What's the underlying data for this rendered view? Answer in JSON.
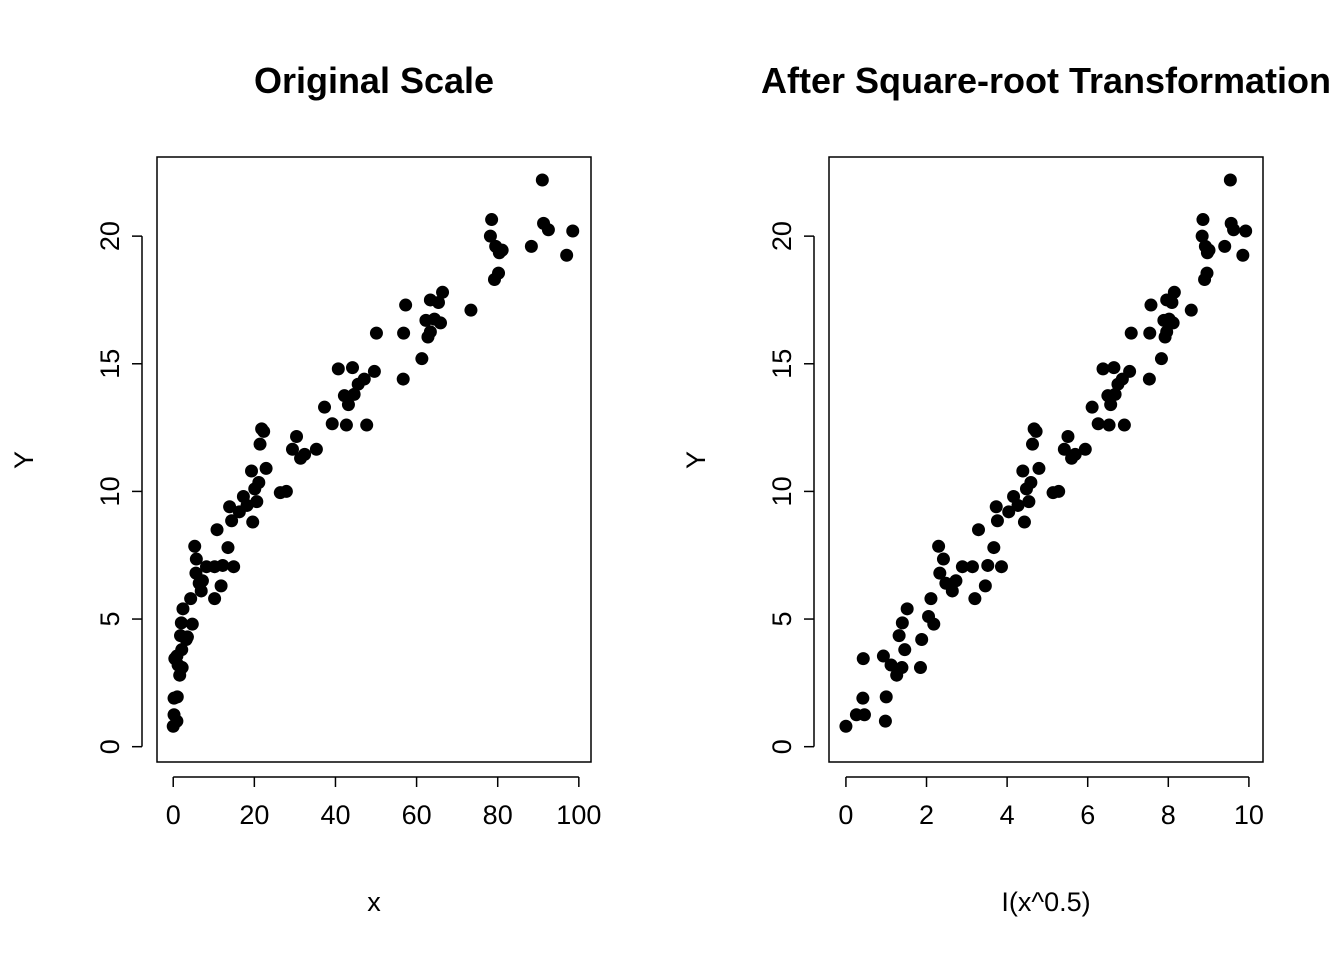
{
  "chart_data": [
    {
      "type": "scatter",
      "title": "Original Scale",
      "xlabel": "x",
      "ylabel": "Y",
      "xlim": [
        -4,
        103
      ],
      "ylim": [
        -0.6,
        23.1
      ],
      "x_ticks": [
        0,
        20,
        40,
        60,
        80,
        100
      ],
      "y_ticks": [
        0,
        5,
        10,
        15,
        20
      ],
      "grid": false,
      "legend": "none",
      "point_color": "#000000",
      "points": [
        {
          "x": 0.0,
          "y": 0.8
        },
        {
          "x": 0.2,
          "y": 1.25
        },
        {
          "x": 0.2,
          "y": 1.9
        },
        {
          "x": 0.4,
          "y": 3.45
        },
        {
          "x": 0.9,
          "y": 1.0
        },
        {
          "x": 1.0,
          "y": 1.95
        },
        {
          "x": 0.9,
          "y": 3.55
        },
        {
          "x": 1.2,
          "y": 3.2
        },
        {
          "x": 1.6,
          "y": 2.8
        },
        {
          "x": 2.2,
          "y": 3.1
        },
        {
          "x": 1.8,
          "y": 4.35
        },
        {
          "x": 2.0,
          "y": 4.85
        },
        {
          "x": 2.1,
          "y": 3.8
        },
        {
          "x": 2.4,
          "y": 5.4
        },
        {
          "x": 3.2,
          "y": 4.2
        },
        {
          "x": 3.5,
          "y": 4.3
        },
        {
          "x": 4.3,
          "y": 5.8
        },
        {
          "x": 4.7,
          "y": 4.8
        },
        {
          "x": 5.3,
          "y": 7.85
        },
        {
          "x": 5.6,
          "y": 6.8
        },
        {
          "x": 5.7,
          "y": 7.35
        },
        {
          "x": 6.4,
          "y": 6.4
        },
        {
          "x": 6.9,
          "y": 6.1
        },
        {
          "x": 7.2,
          "y": 6.5
        },
        {
          "x": 8.2,
          "y": 7.05
        },
        {
          "x": 10.2,
          "y": 5.8
        },
        {
          "x": 10.8,
          "y": 8.5
        },
        {
          "x": 10.2,
          "y": 7.05
        },
        {
          "x": 11.8,
          "y": 6.3
        },
        {
          "x": 12.2,
          "y": 7.1
        },
        {
          "x": 13.5,
          "y": 7.8
        },
        {
          "x": 13.9,
          "y": 9.4
        },
        {
          "x": 14.4,
          "y": 8.85
        },
        {
          "x": 14.9,
          "y": 7.05
        },
        {
          "x": 16.3,
          "y": 9.2
        },
        {
          "x": 17.3,
          "y": 9.8
        },
        {
          "x": 18.2,
          "y": 9.45
        },
        {
          "x": 19.3,
          "y": 10.8
        },
        {
          "x": 19.6,
          "y": 8.8
        },
        {
          "x": 20.1,
          "y": 10.1
        },
        {
          "x": 20.6,
          "y": 9.6
        },
        {
          "x": 21.1,
          "y": 10.35
        },
        {
          "x": 21.4,
          "y": 11.85
        },
        {
          "x": 21.8,
          "y": 12.45
        },
        {
          "x": 22.3,
          "y": 12.35
        },
        {
          "x": 22.9,
          "y": 10.9
        },
        {
          "x": 26.4,
          "y": 9.95
        },
        {
          "x": 27.9,
          "y": 10.0
        },
        {
          "x": 29.4,
          "y": 11.65
        },
        {
          "x": 30.4,
          "y": 12.15
        },
        {
          "x": 31.4,
          "y": 11.3
        },
        {
          "x": 32.4,
          "y": 11.45
        },
        {
          "x": 35.3,
          "y": 11.65
        },
        {
          "x": 37.3,
          "y": 13.3
        },
        {
          "x": 39.2,
          "y": 12.65
        },
        {
          "x": 40.7,
          "y": 14.8
        },
        {
          "x": 42.2,
          "y": 13.75
        },
        {
          "x": 42.7,
          "y": 12.6
        },
        {
          "x": 43.2,
          "y": 13.4
        },
        {
          "x": 44.2,
          "y": 14.85
        },
        {
          "x": 44.6,
          "y": 13.8
        },
        {
          "x": 45.6,
          "y": 14.2
        },
        {
          "x": 47.1,
          "y": 14.4
        },
        {
          "x": 47.7,
          "y": 12.6
        },
        {
          "x": 49.6,
          "y": 14.7
        },
        {
          "x": 50.1,
          "y": 16.2
        },
        {
          "x": 56.7,
          "y": 14.4
        },
        {
          "x": 56.8,
          "y": 16.2
        },
        {
          "x": 57.3,
          "y": 17.3
        },
        {
          "x": 61.3,
          "y": 15.2
        },
        {
          "x": 62.3,
          "y": 16.7
        },
        {
          "x": 62.8,
          "y": 16.05
        },
        {
          "x": 63.4,
          "y": 17.5
        },
        {
          "x": 63.4,
          "y": 16.25
        },
        {
          "x": 64.4,
          "y": 16.75
        },
        {
          "x": 65.4,
          "y": 17.4
        },
        {
          "x": 65.9,
          "y": 16.6
        },
        {
          "x": 66.4,
          "y": 17.8
        },
        {
          "x": 73.4,
          "y": 17.1
        },
        {
          "x": 78.2,
          "y": 20.0
        },
        {
          "x": 78.5,
          "y": 20.65
        },
        {
          "x": 79.2,
          "y": 18.3
        },
        {
          "x": 79.5,
          "y": 19.6
        },
        {
          "x": 80.2,
          "y": 18.55
        },
        {
          "x": 80.4,
          "y": 19.35
        },
        {
          "x": 81.1,
          "y": 19.45
        },
        {
          "x": 88.3,
          "y": 19.6
        },
        {
          "x": 91.0,
          "y": 22.2
        },
        {
          "x": 91.3,
          "y": 20.5
        },
        {
          "x": 92.5,
          "y": 20.25
        },
        {
          "x": 97.0,
          "y": 19.25
        },
        {
          "x": 98.5,
          "y": 20.2
        }
      ]
    },
    {
      "type": "scatter",
      "title": "After Square-root Transformation",
      "xlabel": "I(x^0.5)",
      "ylabel": "Y",
      "xlim": [
        -0.42,
        10.35
      ],
      "ylim": [
        -0.6,
        23.1
      ],
      "x_ticks": [
        0,
        2,
        4,
        6,
        8,
        10
      ],
      "y_ticks": [
        0,
        5,
        10,
        15,
        20
      ],
      "grid": false,
      "legend": "none",
      "point_color": "#000000",
      "points": [
        {
          "x": 0.0,
          "y": 0.8
        },
        {
          "x": 0.26,
          "y": 1.25
        },
        {
          "x": 0.46,
          "y": 1.25
        },
        {
          "x": 0.42,
          "y": 1.9
        },
        {
          "x": 0.43,
          "y": 3.45
        },
        {
          "x": 0.93,
          "y": 3.55
        },
        {
          "x": 0.98,
          "y": 1.0
        },
        {
          "x": 1.0,
          "y": 1.95
        },
        {
          "x": 1.12,
          "y": 3.2
        },
        {
          "x": 1.26,
          "y": 2.8
        },
        {
          "x": 1.32,
          "y": 4.35
        },
        {
          "x": 1.39,
          "y": 3.1
        },
        {
          "x": 1.4,
          "y": 4.85
        },
        {
          "x": 1.46,
          "y": 3.8
        },
        {
          "x": 1.52,
          "y": 5.4
        },
        {
          "x": 1.85,
          "y": 3.1
        },
        {
          "x": 1.88,
          "y": 4.2
        },
        {
          "x": 2.05,
          "y": 5.1
        },
        {
          "x": 2.11,
          "y": 5.8
        },
        {
          "x": 2.18,
          "y": 4.8
        },
        {
          "x": 2.3,
          "y": 7.85
        },
        {
          "x": 2.33,
          "y": 6.8
        },
        {
          "x": 2.42,
          "y": 7.35
        },
        {
          "x": 2.48,
          "y": 6.4
        },
        {
          "x": 2.64,
          "y": 6.1
        },
        {
          "x": 2.73,
          "y": 6.5
        },
        {
          "x": 2.89,
          "y": 7.05
        },
        {
          "x": 3.14,
          "y": 7.05
        },
        {
          "x": 3.2,
          "y": 5.8
        },
        {
          "x": 3.29,
          "y": 8.5
        },
        {
          "x": 3.46,
          "y": 6.3
        },
        {
          "x": 3.52,
          "y": 7.1
        },
        {
          "x": 3.67,
          "y": 7.8
        },
        {
          "x": 3.73,
          "y": 9.4
        },
        {
          "x": 3.76,
          "y": 8.85
        },
        {
          "x": 3.86,
          "y": 7.05
        },
        {
          "x": 4.04,
          "y": 9.2
        },
        {
          "x": 4.16,
          "y": 9.8
        },
        {
          "x": 4.27,
          "y": 9.45
        },
        {
          "x": 4.39,
          "y": 10.8
        },
        {
          "x": 4.43,
          "y": 8.8
        },
        {
          "x": 4.48,
          "y": 10.1
        },
        {
          "x": 4.54,
          "y": 9.6
        },
        {
          "x": 4.59,
          "y": 10.35
        },
        {
          "x": 4.63,
          "y": 11.85
        },
        {
          "x": 4.67,
          "y": 12.45
        },
        {
          "x": 4.72,
          "y": 12.35
        },
        {
          "x": 4.79,
          "y": 10.9
        },
        {
          "x": 5.14,
          "y": 9.95
        },
        {
          "x": 5.28,
          "y": 10.0
        },
        {
          "x": 5.42,
          "y": 11.65
        },
        {
          "x": 5.51,
          "y": 12.15
        },
        {
          "x": 5.6,
          "y": 11.3
        },
        {
          "x": 5.69,
          "y": 11.45
        },
        {
          "x": 5.94,
          "y": 11.65
        },
        {
          "x": 6.11,
          "y": 13.3
        },
        {
          "x": 6.26,
          "y": 12.65
        },
        {
          "x": 6.38,
          "y": 14.8
        },
        {
          "x": 6.5,
          "y": 13.75
        },
        {
          "x": 6.53,
          "y": 12.6
        },
        {
          "x": 6.57,
          "y": 13.4
        },
        {
          "x": 6.65,
          "y": 14.85
        },
        {
          "x": 6.68,
          "y": 13.8
        },
        {
          "x": 6.75,
          "y": 14.2
        },
        {
          "x": 6.86,
          "y": 14.4
        },
        {
          "x": 6.91,
          "y": 12.6
        },
        {
          "x": 7.04,
          "y": 14.7
        },
        {
          "x": 7.08,
          "y": 16.2
        },
        {
          "x": 7.53,
          "y": 14.4
        },
        {
          "x": 7.54,
          "y": 16.2
        },
        {
          "x": 7.57,
          "y": 17.3
        },
        {
          "x": 7.83,
          "y": 15.2
        },
        {
          "x": 7.89,
          "y": 16.7
        },
        {
          "x": 7.92,
          "y": 16.05
        },
        {
          "x": 7.96,
          "y": 17.5
        },
        {
          "x": 7.96,
          "y": 16.25
        },
        {
          "x": 8.02,
          "y": 16.75
        },
        {
          "x": 8.09,
          "y": 17.4
        },
        {
          "x": 8.12,
          "y": 16.6
        },
        {
          "x": 8.15,
          "y": 17.8
        },
        {
          "x": 8.57,
          "y": 17.1
        },
        {
          "x": 8.84,
          "y": 20.0
        },
        {
          "x": 8.86,
          "y": 20.65
        },
        {
          "x": 8.9,
          "y": 18.3
        },
        {
          "x": 8.92,
          "y": 19.6
        },
        {
          "x": 8.96,
          "y": 18.55
        },
        {
          "x": 8.97,
          "y": 19.35
        },
        {
          "x": 9.01,
          "y": 19.45
        },
        {
          "x": 9.4,
          "y": 19.6
        },
        {
          "x": 9.54,
          "y": 22.2
        },
        {
          "x": 9.56,
          "y": 20.5
        },
        {
          "x": 9.62,
          "y": 20.25
        },
        {
          "x": 9.85,
          "y": 19.25
        },
        {
          "x": 9.92,
          "y": 20.2
        }
      ]
    }
  ]
}
